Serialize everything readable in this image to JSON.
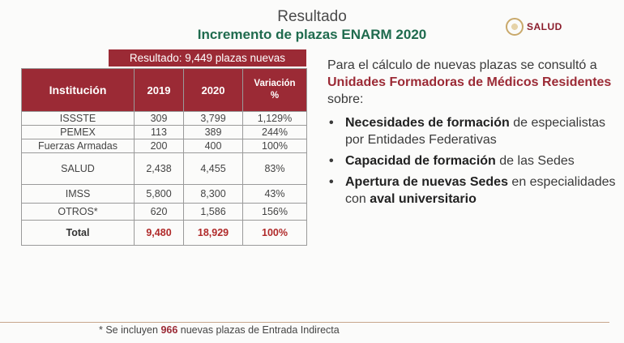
{
  "header": {
    "title": "Resultado",
    "subtitle": "Incremento de plazas ENARM 2020"
  },
  "logo": {
    "name": "SALUD"
  },
  "banner": "Resultado: 9,449 plazas nuevas",
  "table": {
    "headers": {
      "institucion": "Institución",
      "y2019": "2019",
      "y2020": "2020",
      "variacion": "Variación",
      "variacion_unit": "%"
    },
    "rows": [
      {
        "inst": "ISSSTE",
        "y2019": "309",
        "y2020": "3,799",
        "var": "1,129%"
      },
      {
        "inst": "PEMEX",
        "y2019": "113",
        "y2020": "389",
        "var": "244%"
      },
      {
        "inst": "Fuerzas Armadas",
        "y2019": "200",
        "y2020": "400",
        "var": "100%"
      },
      {
        "inst": "SALUD",
        "y2019": "2,438",
        "y2020": "4,455",
        "var": "83%"
      },
      {
        "inst": "IMSS",
        "y2019": "5,800",
        "y2020": "8,300",
        "var": "43%"
      },
      {
        "inst": "OTROS*",
        "y2019": "620",
        "y2020": "1,586",
        "var": "156%"
      }
    ],
    "total": {
      "inst": "Total",
      "y2019": "9,480",
      "y2020": "18,929",
      "var": "100%"
    }
  },
  "text": {
    "intro_a": "Para el cálculo de nuevas plazas se consultó a ",
    "intro_hl": "Unidades Formadoras de Médicos Residentes",
    "intro_b": " sobre:",
    "bullet": "•",
    "items": [
      {
        "bold": "Necesidades de formación",
        "rest": " de especialistas por Entidades Federativas"
      },
      {
        "bold": "Capacidad de formación",
        "rest": " de las Sedes"
      },
      {
        "bold": "Apertura de nuevas Sedes",
        "rest": " en especialidades con ",
        "bold2": "aval universitario"
      }
    ]
  },
  "footnote": {
    "a": "* Se incluyen ",
    "num": "966",
    "b": " nuevas plazas de Entrada Indirecta"
  }
}
